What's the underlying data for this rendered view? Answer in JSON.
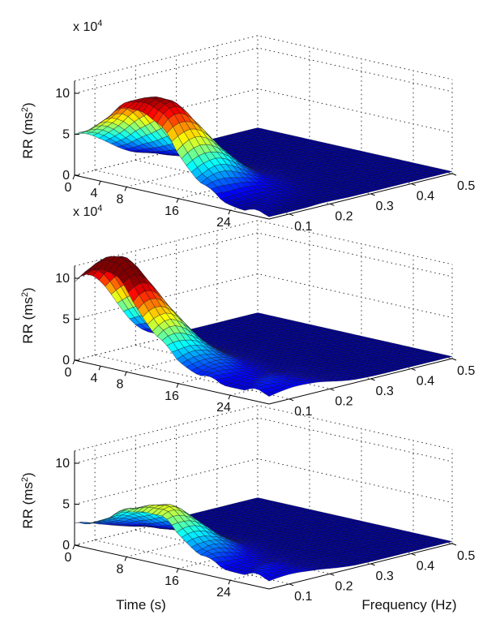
{
  "chart_data": [
    {
      "type": "surface",
      "panel": "top",
      "exponent_label": "x 10",
      "exponent_power": "4",
      "zlabel": "RR (ms",
      "zlabel_sup": "2",
      "zlabel_close": ")",
      "z_ticks": [
        "0",
        "5",
        "10"
      ],
      "zlim": [
        0,
        11
      ],
      "time_ticks": [
        "0",
        "4",
        "8",
        "16",
        "24"
      ],
      "freq_ticks": [
        "0.1",
        "0.2",
        "0.3",
        "0.4",
        "0.5"
      ],
      "time_range": [
        0,
        30
      ],
      "freq_range": [
        0.05,
        0.5
      ],
      "grid": true,
      "peaks": [
        {
          "t": 10,
          "f": 0.08,
          "z": 7.8
        },
        {
          "t": 2,
          "f": 0.06,
          "z": 3.5
        },
        {
          "t": 14,
          "f": 0.12,
          "z": 3.0
        }
      ]
    },
    {
      "type": "surface",
      "panel": "middle",
      "exponent_label": "x 10",
      "exponent_power": "4",
      "zlabel": "RR (ms",
      "zlabel_sup": "2",
      "zlabel_close": ")",
      "z_ticks": [
        "0",
        "5",
        "10"
      ],
      "zlim": [
        0,
        11
      ],
      "time_ticks": [
        "0",
        "4",
        "8",
        "16",
        "24"
      ],
      "freq_ticks": [
        "0.1",
        "0.2",
        "0.3",
        "0.4",
        "0.5"
      ],
      "time_range": [
        0,
        30
      ],
      "freq_range": [
        0.05,
        0.5
      ],
      "grid": true,
      "peaks": [
        {
          "t": 4,
          "f": 0.08,
          "z": 12.5
        },
        {
          "t": 14,
          "f": 0.1,
          "z": 2.0
        },
        {
          "t": 28,
          "f": 0.12,
          "z": 1.2
        }
      ]
    },
    {
      "type": "surface",
      "panel": "bottom",
      "zlabel": "RR (ms",
      "zlabel_sup": "2",
      "zlabel_close": ")",
      "z_ticks": [
        "0",
        "5",
        "10"
      ],
      "zlim": [
        0,
        11
      ],
      "time_ticks": [
        "0",
        "8",
        "16",
        "24"
      ],
      "freq_ticks": [
        "0.1",
        "0.2",
        "0.3",
        "0.4",
        "0.5"
      ],
      "time_range": [
        0,
        30
      ],
      "freq_range": [
        0.05,
        0.5
      ],
      "grid": true,
      "xlabel": "Time (s)",
      "ylabel": "Frequency (Hz)",
      "peaks": [
        {
          "t": 12,
          "f": 0.08,
          "z": 5.8
        },
        {
          "t": 3,
          "f": 0.06,
          "z": 2.0
        },
        {
          "t": 28,
          "f": 0.1,
          "z": 1.0
        }
      ]
    }
  ],
  "colormap": "jet"
}
